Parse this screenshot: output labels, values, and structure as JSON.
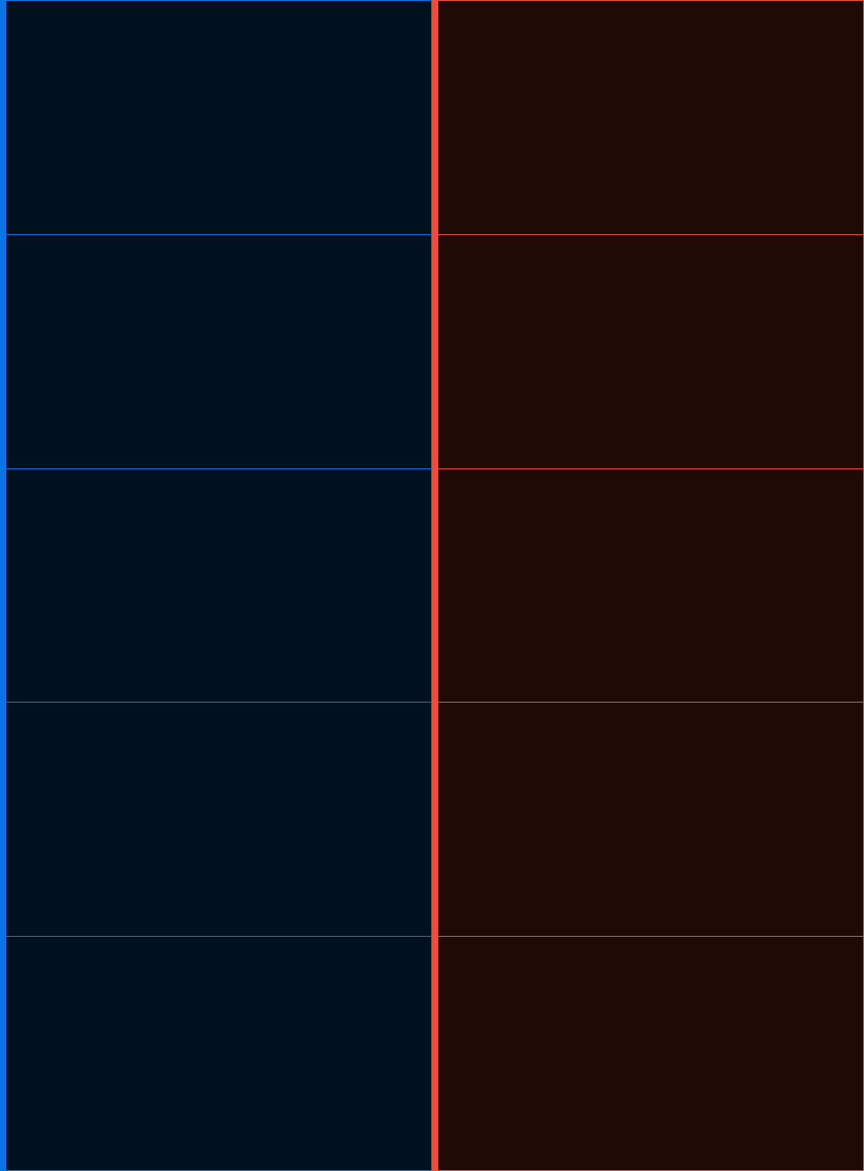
{
  "theme": {
    "left_accent": "#0a74e4",
    "left_cell_bg": "#00101f",
    "right_accent": "#e8503a",
    "right_cell_bg": "#1f0a06"
  },
  "columns": [
    {
      "id": "left",
      "cells": [
        "",
        "",
        "",
        "",
        ""
      ]
    },
    {
      "id": "right",
      "cells": [
        "",
        "",
        "",
        "",
        ""
      ]
    }
  ]
}
